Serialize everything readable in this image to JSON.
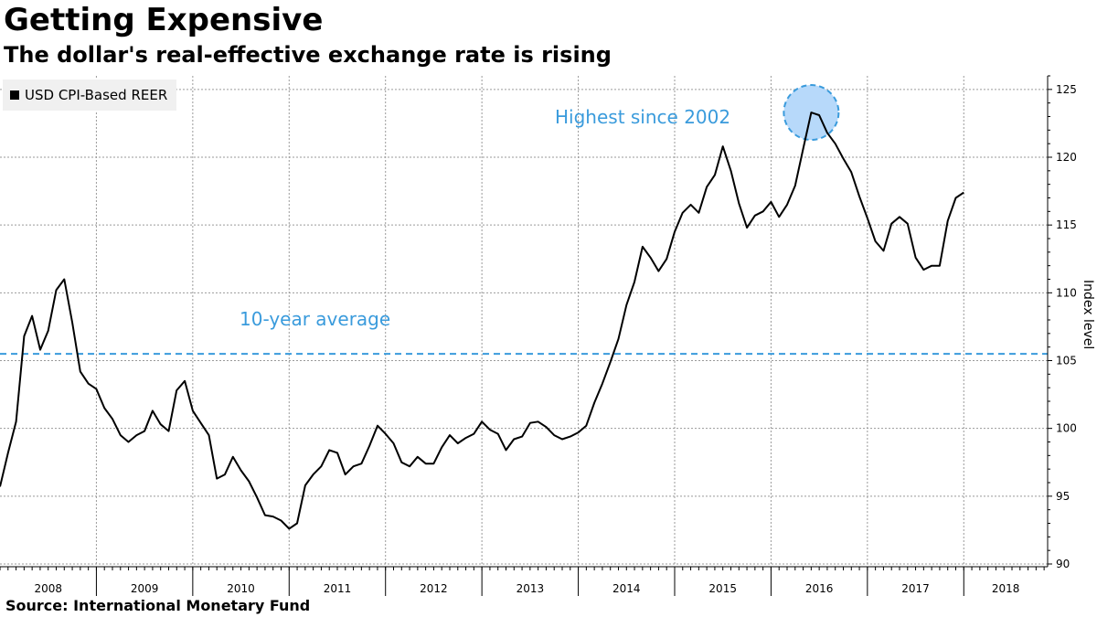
{
  "chart_data": {
    "type": "line",
    "title": "Getting Expensive",
    "subtitle": "The dollar's real-effective exchange rate is rising",
    "ylabel": "Index level",
    "xlabel": "",
    "legend": {
      "label": "USD CPI-Based REER",
      "color": "#000000",
      "position": "top-left"
    },
    "source": "Source:  International Monetary Fund",
    "ylim": [
      90,
      126
    ],
    "yticks": [
      90,
      95,
      100,
      105,
      110,
      115,
      120,
      125
    ],
    "xlim": [
      2008.0,
      2018.87
    ],
    "year_labels": [
      "2008",
      "2009",
      "2010",
      "2011",
      "2012",
      "2013",
      "2014",
      "2015",
      "2016",
      "2017",
      "2018"
    ],
    "grid": true,
    "series": [
      {
        "name": "USD CPI-Based REER",
        "color": "#000000",
        "points": [
          [
            2008.0,
            95.7
          ],
          [
            2008.083,
            98.2
          ],
          [
            2008.167,
            100.5
          ],
          [
            2008.25,
            106.8
          ],
          [
            2008.333,
            108.3
          ],
          [
            2008.417,
            105.8
          ],
          [
            2008.5,
            107.2
          ],
          [
            2008.583,
            110.2
          ],
          [
            2008.667,
            111.0
          ],
          [
            2008.75,
            107.8
          ],
          [
            2008.833,
            104.2
          ],
          [
            2008.917,
            103.3
          ],
          [
            2009.0,
            102.9
          ],
          [
            2009.083,
            101.5
          ],
          [
            2009.167,
            100.7
          ],
          [
            2009.25,
            99.5
          ],
          [
            2009.333,
            99.0
          ],
          [
            2009.417,
            99.5
          ],
          [
            2009.5,
            99.8
          ],
          [
            2009.583,
            101.3
          ],
          [
            2009.667,
            100.3
          ],
          [
            2009.75,
            99.8
          ],
          [
            2009.833,
            102.8
          ],
          [
            2009.917,
            103.5
          ],
          [
            2010.0,
            101.3
          ],
          [
            2010.083,
            100.4
          ],
          [
            2010.167,
            99.5
          ],
          [
            2010.25,
            96.3
          ],
          [
            2010.333,
            96.6
          ],
          [
            2010.417,
            97.9
          ],
          [
            2010.5,
            96.9
          ],
          [
            2010.583,
            96.1
          ],
          [
            2010.667,
            94.9
          ],
          [
            2010.75,
            93.6
          ],
          [
            2010.833,
            93.5
          ],
          [
            2010.917,
            93.2
          ],
          [
            2011.0,
            92.6
          ],
          [
            2011.083,
            93.0
          ],
          [
            2011.167,
            95.8
          ],
          [
            2011.25,
            96.6
          ],
          [
            2011.333,
            97.2
          ],
          [
            2011.417,
            98.4
          ],
          [
            2011.5,
            98.2
          ],
          [
            2011.583,
            96.6
          ],
          [
            2011.667,
            97.2
          ],
          [
            2011.75,
            97.4
          ],
          [
            2011.833,
            98.7
          ],
          [
            2011.917,
            100.2
          ],
          [
            2012.0,
            99.6
          ],
          [
            2012.083,
            98.9
          ],
          [
            2012.167,
            97.5
          ],
          [
            2012.25,
            97.2
          ],
          [
            2012.333,
            97.9
          ],
          [
            2012.417,
            97.4
          ],
          [
            2012.5,
            97.4
          ],
          [
            2012.583,
            98.6
          ],
          [
            2012.667,
            99.5
          ],
          [
            2012.75,
            98.9
          ],
          [
            2012.833,
            99.3
          ],
          [
            2012.917,
            99.6
          ],
          [
            2013.0,
            100.5
          ],
          [
            2013.083,
            99.9
          ],
          [
            2013.167,
            99.6
          ],
          [
            2013.25,
            98.4
          ],
          [
            2013.333,
            99.2
          ],
          [
            2013.417,
            99.4
          ],
          [
            2013.5,
            100.4
          ],
          [
            2013.583,
            100.5
          ],
          [
            2013.667,
            100.1
          ],
          [
            2013.75,
            99.5
          ],
          [
            2013.833,
            99.2
          ],
          [
            2013.917,
            99.4
          ],
          [
            2014.0,
            99.7
          ],
          [
            2014.083,
            100.2
          ],
          [
            2014.167,
            101.9
          ],
          [
            2014.25,
            103.3
          ],
          [
            2014.333,
            104.9
          ],
          [
            2014.417,
            106.6
          ],
          [
            2014.5,
            109.1
          ],
          [
            2014.583,
            110.8
          ],
          [
            2014.667,
            113.4
          ],
          [
            2014.75,
            112.6
          ],
          [
            2014.833,
            111.6
          ],
          [
            2014.917,
            112.5
          ],
          [
            2015.0,
            114.5
          ],
          [
            2015.083,
            115.9
          ],
          [
            2015.167,
            116.5
          ],
          [
            2015.25,
            115.9
          ],
          [
            2015.333,
            117.8
          ],
          [
            2015.417,
            118.7
          ],
          [
            2015.5,
            120.8
          ],
          [
            2015.583,
            119.0
          ],
          [
            2015.667,
            116.6
          ],
          [
            2015.75,
            114.8
          ],
          [
            2015.833,
            115.7
          ],
          [
            2015.917,
            116.0
          ],
          [
            2016.0,
            116.7
          ],
          [
            2016.083,
            115.6
          ],
          [
            2016.167,
            116.5
          ],
          [
            2016.25,
            117.9
          ],
          [
            2016.333,
            120.6
          ],
          [
            2016.417,
            123.3
          ],
          [
            2016.5,
            123.1
          ],
          [
            2016.583,
            121.8
          ],
          [
            2016.667,
            121.0
          ],
          [
            2016.75,
            119.9
          ],
          [
            2016.833,
            118.9
          ],
          [
            2016.917,
            117.1
          ],
          [
            2017.0,
            115.5
          ],
          [
            2017.083,
            113.8
          ],
          [
            2017.167,
            113.1
          ],
          [
            2017.25,
            115.1
          ],
          [
            2017.333,
            115.6
          ],
          [
            2017.417,
            115.1
          ],
          [
            2017.5,
            112.6
          ],
          [
            2017.583,
            111.7
          ],
          [
            2017.667,
            112.0
          ],
          [
            2017.75,
            112.0
          ],
          [
            2017.833,
            115.3
          ],
          [
            2017.917,
            117.0
          ],
          [
            2018.0,
            117.4
          ]
        ]
      }
    ],
    "reference_line": {
      "value": 105.5,
      "color": "#3a9bdc",
      "label": "10-year average"
    },
    "highlight": {
      "x": 2016.417,
      "y": 123.3,
      "label": "Highest since 2002",
      "color": "#3a9bdc"
    }
  }
}
